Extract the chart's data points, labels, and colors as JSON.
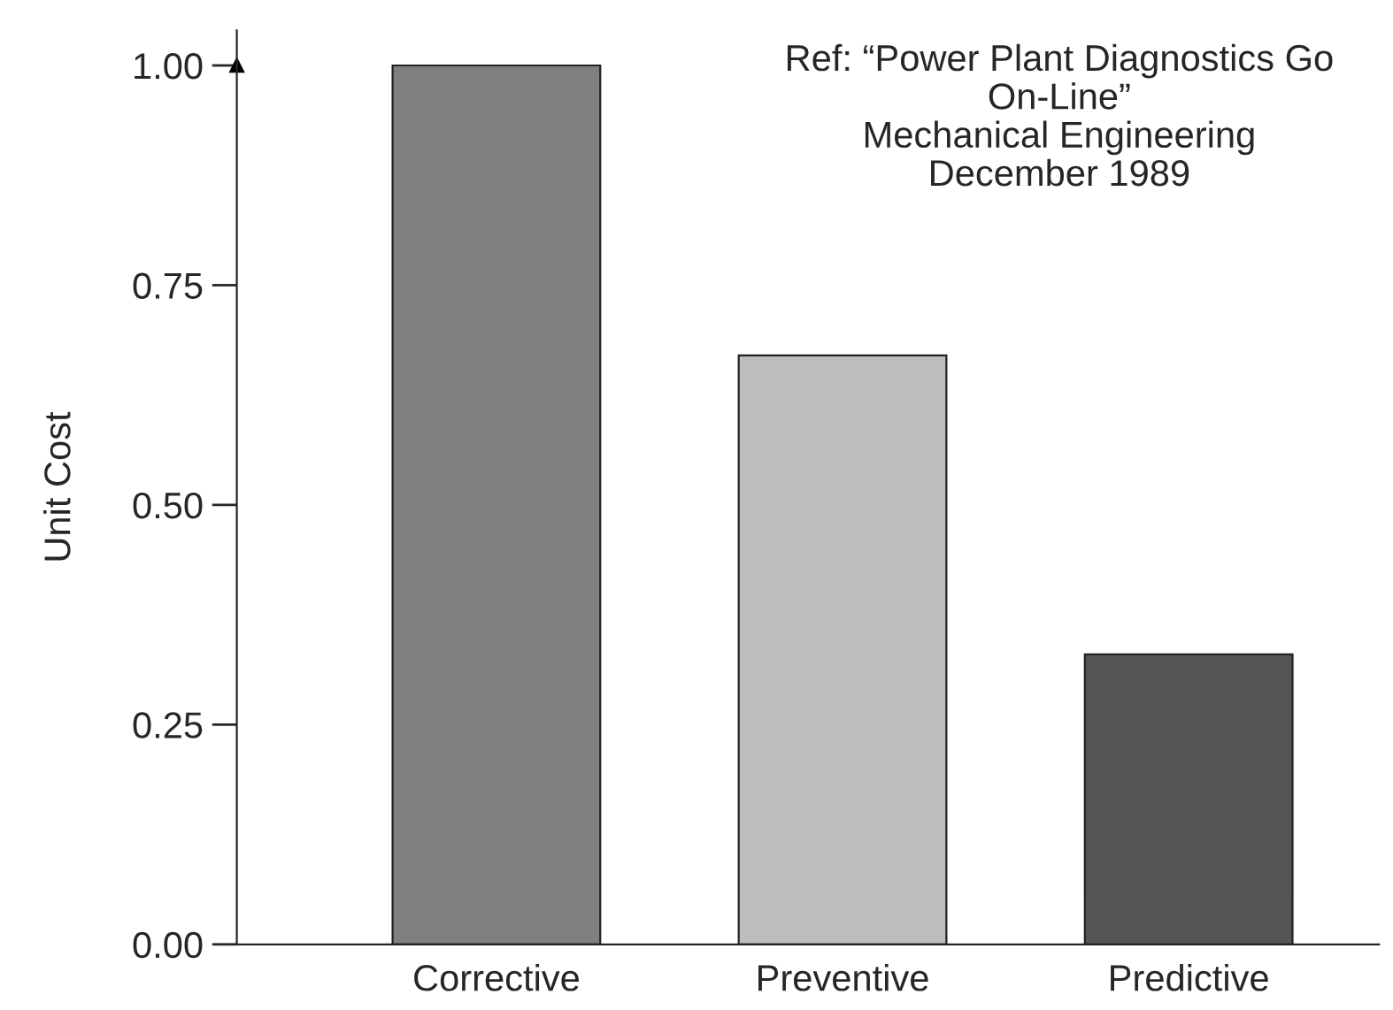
{
  "chart_data": {
    "type": "bar",
    "ylabel": "Unit Cost",
    "categories": [
      "Corrective",
      "Preventive",
      "Predictive"
    ],
    "values": [
      1.0,
      0.67,
      0.33
    ],
    "colors": [
      "#7f7f81",
      "#bdbdbf",
      "#555557"
    ],
    "ylim": [
      0,
      1.04
    ],
    "yticks": [
      {
        "value": 0,
        "label": "0.00"
      },
      {
        "value": 0.25,
        "label": "0.25"
      },
      {
        "value": 0.5,
        "label": "0.50"
      },
      {
        "value": 0.75,
        "label": "0.75"
      },
      {
        "value": 1.0,
        "label": "1.00"
      }
    ],
    "grid": false,
    "legend": false,
    "annotations": [
      "Ref: “Power Plant Diagnostics Go\nOn-Line”\nMechanical Engineering\nDecember 1989"
    ]
  }
}
